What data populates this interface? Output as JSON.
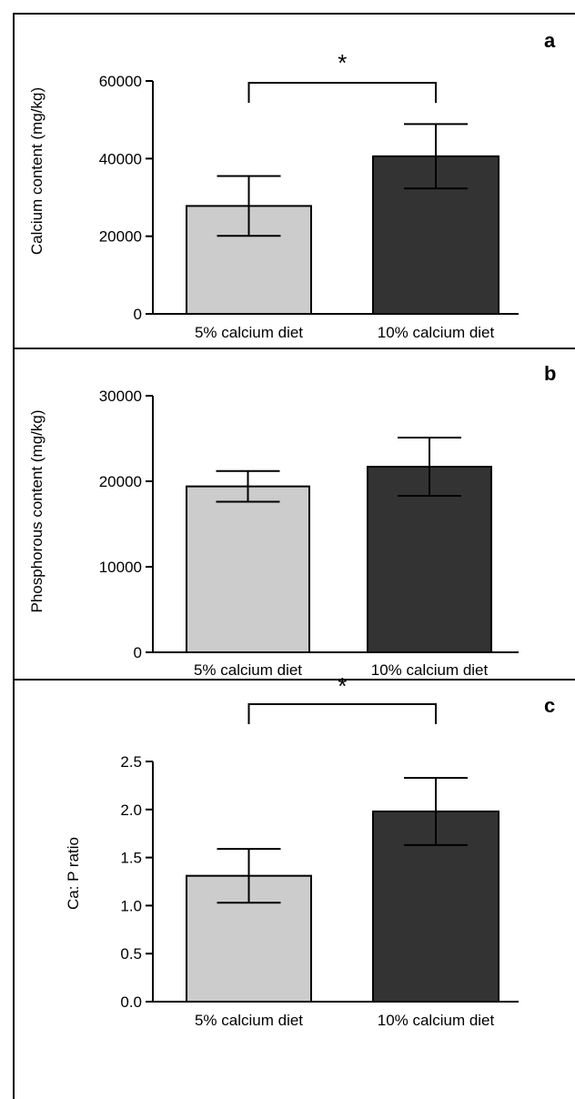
{
  "chart_data": [
    {
      "type": "bar",
      "panel_label": "a",
      "categories": [
        "5% calcium diet",
        "10% calcium diet"
      ],
      "values": [
        27800,
        40600
      ],
      "errors": [
        7700,
        8300
      ],
      "ylabel": "Calcium content (mg/kg)",
      "ylim": [
        0,
        60000
      ],
      "yticks": [
        "0",
        "20000",
        "40000",
        "60000"
      ],
      "significance": "*",
      "colors": [
        "#cccccc",
        "#333333"
      ],
      "grid": false
    },
    {
      "type": "bar",
      "panel_label": "b",
      "categories": [
        "5% calcium diet",
        "10% calcium diet"
      ],
      "values": [
        19400,
        21700
      ],
      "errors": [
        1800,
        3400
      ],
      "ylabel": "Phosphorous content (mg/kg)",
      "ylim": [
        0,
        30000
      ],
      "yticks": [
        "0",
        "10000",
        "20000",
        "30000"
      ],
      "significance": "",
      "colors": [
        "#cccccc",
        "#333333"
      ],
      "grid": false
    },
    {
      "type": "bar",
      "panel_label": "c",
      "categories": [
        "5% calcium diet",
        "10% calcium diet"
      ],
      "values": [
        1.31,
        1.98
      ],
      "errors": [
        0.28,
        0.35
      ],
      "ylabel": "Ca: P ratio",
      "ylim": [
        0,
        2.5
      ],
      "yticks": [
        "0.0",
        "0.5",
        "1.0",
        "1.5",
        "2.0",
        "2.5"
      ],
      "significance": "*",
      "colors": [
        "#cccccc",
        "#333333"
      ],
      "grid": false
    }
  ]
}
